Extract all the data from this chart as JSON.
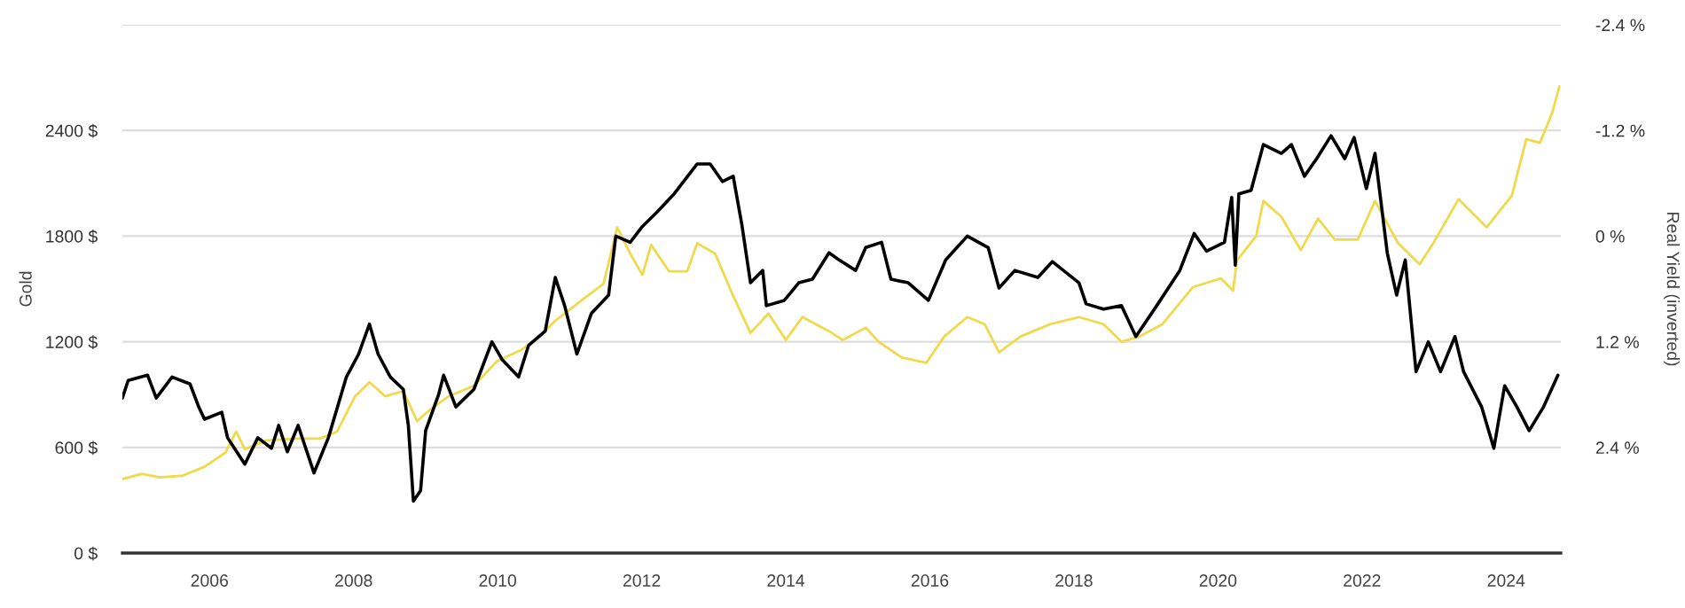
{
  "chart_data": {
    "type": "line",
    "ylabel": "Gold",
    "y2label": "Real Yield (inverted)",
    "xlim": [
      2004.79,
      2024.76
    ],
    "xticks": [
      2006,
      2008,
      2010,
      2012,
      2014,
      2016,
      2018,
      2020,
      2022,
      2024
    ],
    "ylim": [
      0,
      3000
    ],
    "yticks": [
      {
        "value": 0,
        "label": "0 $"
      },
      {
        "value": 600,
        "label": "600 $"
      },
      {
        "value": 1200,
        "label": "1200 $"
      },
      {
        "value": 1800,
        "label": "1800 $"
      },
      {
        "value": 2400,
        "label": "2400 $"
      },
      {
        "value": 3000,
        "label": null
      }
    ],
    "y2lim": [
      3.6,
      -2.4
    ],
    "y2ticks": [
      {
        "value": -2.4,
        "label": "-2.4 %"
      },
      {
        "value": -1.2,
        "label": "-1.2 %"
      },
      {
        "value": 0,
        "label": "0 %"
      },
      {
        "value": 1.2,
        "label": "1.2 %"
      },
      {
        "value": 2.4,
        "label": "2.4 %"
      }
    ],
    "grid": "y",
    "marker": "none",
    "line_style": "solid",
    "series": [
      {
        "color": "#f0d94a",
        "x": [
          2004.79,
          2005.06,
          2005.31,
          2005.63,
          2005.93,
          2006.22,
          2006.37,
          2006.49,
          2006.79,
          2007.21,
          2007.53,
          2007.77,
          2008.02,
          2008.22,
          2008.44,
          2008.69,
          2008.88,
          2009.08,
          2009.32,
          2009.67,
          2009.99,
          2010.31,
          2010.56,
          2010.8,
          2011.15,
          2011.47,
          2011.66,
          2011.84,
          2012.01,
          2012.13,
          2012.38,
          2012.63,
          2012.77,
          2013.02,
          2013.27,
          2013.51,
          2013.76,
          2014.0,
          2014.23,
          2014.6,
          2014.79,
          2015.11,
          2015.29,
          2015.61,
          2015.95,
          2016.2,
          2016.52,
          2016.76,
          2016.96,
          2017.26,
          2017.67,
          2018.07,
          2018.41,
          2018.66,
          2018.91,
          2019.23,
          2019.65,
          2020.04,
          2020.21,
          2020.26,
          2020.53,
          2020.63,
          2020.88,
          2021.15,
          2021.39,
          2021.62,
          2021.94,
          2022.18,
          2022.5,
          2022.8,
          2022.99,
          2023.34,
          2023.73,
          2024.08,
          2024.28,
          2024.47,
          2024.64,
          2024.74
        ],
        "values": [
          420,
          450,
          430,
          440,
          490,
          570,
          690,
          590,
          640,
          650,
          650,
          690,
          890,
          970,
          890,
          920,
          750,
          820,
          890,
          950,
          1090,
          1150,
          1220,
          1320,
          1430,
          1530,
          1850,
          1700,
          1580,
          1750,
          1600,
          1600,
          1760,
          1700,
          1460,
          1250,
          1360,
          1210,
          1340,
          1260,
          1210,
          1280,
          1200,
          1110,
          1080,
          1230,
          1340,
          1300,
          1140,
          1230,
          1300,
          1340,
          1300,
          1200,
          1230,
          1300,
          1510,
          1560,
          1490,
          1660,
          1800,
          2000,
          1910,
          1720,
          1900,
          1780,
          1780,
          2000,
          1760,
          1640,
          1760,
          2010,
          1850,
          2030,
          2350,
          2330,
          2500,
          2650
        ]
      },
      {
        "color": "#000000",
        "axis": "y2",
        "x": [
          2004.79,
          2004.87,
          2005.14,
          2005.26,
          2005.48,
          2005.73,
          2005.85,
          2005.93,
          2006.17,
          2006.25,
          2006.49,
          2006.67,
          2006.86,
          2006.96,
          2007.08,
          2007.23,
          2007.45,
          2007.65,
          2007.9,
          2008.07,
          2008.22,
          2008.34,
          2008.51,
          2008.69,
          2008.76,
          2008.83,
          2008.93,
          2009.0,
          2009.18,
          2009.25,
          2009.42,
          2009.67,
          2009.92,
          2010.06,
          2010.29,
          2010.43,
          2010.66,
          2010.8,
          2010.93,
          2011.1,
          2011.3,
          2011.54,
          2011.64,
          2011.84,
          2012.01,
          2012.21,
          2012.45,
          2012.77,
          2012.95,
          2013.12,
          2013.27,
          2013.39,
          2013.51,
          2013.68,
          2013.73,
          2013.98,
          2014.18,
          2014.37,
          2014.6,
          2014.74,
          2014.97,
          2015.11,
          2015.33,
          2015.46,
          2015.7,
          2015.98,
          2016.22,
          2016.52,
          2016.81,
          2016.96,
          2017.18,
          2017.5,
          2017.7,
          2018.07,
          2018.17,
          2018.41,
          2018.66,
          2018.86,
          2019.15,
          2019.47,
          2019.67,
          2019.84,
          2020.09,
          2020.19,
          2020.24,
          2020.29,
          2020.46,
          2020.63,
          2020.88,
          2021.02,
          2021.2,
          2021.37,
          2021.57,
          2021.76,
          2021.89,
          2022.06,
          2022.18,
          2022.35,
          2022.48,
          2022.6,
          2022.75,
          2022.92,
          2023.09,
          2023.29,
          2023.41,
          2023.66,
          2023.83,
          2023.98,
          2024.15,
          2024.32,
          2024.52,
          2024.72
        ],
        "values": [
          1.84,
          1.64,
          1.58,
          1.84,
          1.6,
          1.68,
          1.94,
          2.08,
          2.0,
          2.29,
          2.59,
          2.29,
          2.41,
          2.15,
          2.45,
          2.15,
          2.69,
          2.29,
          1.6,
          1.34,
          1.0,
          1.34,
          1.6,
          1.74,
          2.15,
          3.01,
          2.89,
          2.21,
          1.8,
          1.58,
          1.94,
          1.74,
          1.2,
          1.4,
          1.6,
          1.24,
          1.08,
          0.47,
          0.79,
          1.34,
          0.88,
          0.67,
          0.0,
          0.07,
          -0.11,
          -0.27,
          -0.48,
          -0.82,
          -0.82,
          -0.62,
          -0.68,
          -0.13,
          0.53,
          0.39,
          0.79,
          0.73,
          0.53,
          0.49,
          0.19,
          0.27,
          0.39,
          0.13,
          0.07,
          0.49,
          0.53,
          0.73,
          0.27,
          0.0,
          0.13,
          0.59,
          0.39,
          0.47,
          0.29,
          0.53,
          0.77,
          0.83,
          0.79,
          1.14,
          0.79,
          0.39,
          -0.03,
          0.17,
          0.07,
          -0.44,
          0.33,
          -0.48,
          -0.52,
          -1.04,
          -0.94,
          -1.04,
          -0.68,
          -0.88,
          -1.14,
          -0.88,
          -1.12,
          -0.54,
          -0.94,
          0.19,
          0.67,
          0.27,
          1.54,
          1.2,
          1.54,
          1.14,
          1.54,
          1.94,
          2.41,
          1.7,
          1.94,
          2.21,
          1.94,
          1.58
        ]
      }
    ]
  }
}
